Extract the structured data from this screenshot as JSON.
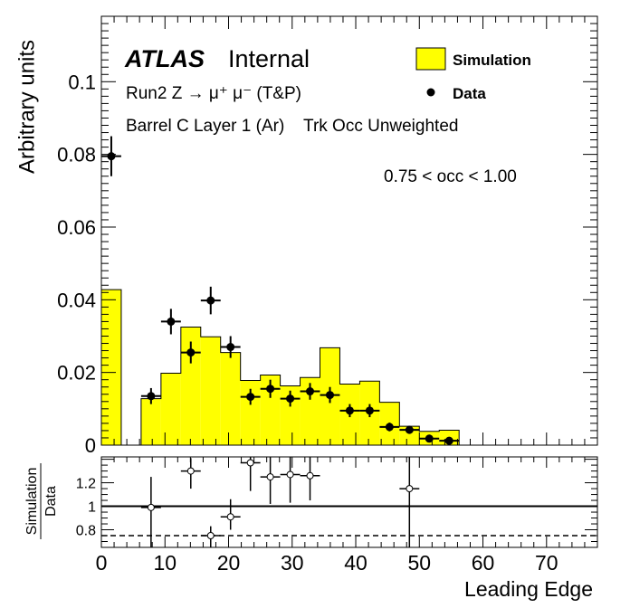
{
  "chart_data": [
    {
      "type": "bar",
      "panel": "main",
      "ylabel": "Arbitrary units",
      "xlim": [
        0,
        78
      ],
      "ylim": [
        0,
        0.118
      ],
      "yticks": [
        0,
        0.02,
        0.04,
        0.06,
        0.08,
        0.1
      ],
      "ytick_labels": [
        "0",
        "0.02",
        "0.04",
        "0.06",
        "0.08",
        "0.1"
      ],
      "atlas_label": "ATLAS",
      "atlas_status": "Internal",
      "annotations": [
        "Run2 Z → μ⁺ μ⁻ (T&P)",
        "Barrel C Layer 1 (Ar)    Trk Occ Unweighted",
        "0.75 < occ < 1.00"
      ],
      "legend": {
        "position": "top-right",
        "entries": [
          "Simulation",
          "Data"
        ]
      },
      "series": [
        {
          "name": "Simulation",
          "kind": "histogram",
          "color": "#ffff00",
          "bins": [
            {
              "x0": 0,
              "x1": 3.125,
              "y": 0.0428
            },
            {
              "x0": 3.125,
              "x1": 6.25,
              "y": 0
            },
            {
              "x0": 6.25,
              "x1": 9.375,
              "y": 0.0128
            },
            {
              "x0": 9.375,
              "x1": 12.5,
              "y": 0.0198
            },
            {
              "x0": 12.5,
              "x1": 15.625,
              "y": 0.0325
            },
            {
              "x0": 15.625,
              "x1": 18.75,
              "y": 0.0298
            },
            {
              "x0": 18.75,
              "x1": 21.875,
              "y": 0.0255
            },
            {
              "x0": 21.875,
              "x1": 25,
              "y": 0.0178
            },
            {
              "x0": 25,
              "x1": 28.125,
              "y": 0.0193
            },
            {
              "x0": 28.125,
              "x1": 31.25,
              "y": 0.0163
            },
            {
              "x0": 31.25,
              "x1": 34.375,
              "y": 0.0186
            },
            {
              "x0": 34.375,
              "x1": 37.5,
              "y": 0.0268
            },
            {
              "x0": 37.5,
              "x1": 40.625,
              "y": 0.0168
            },
            {
              "x0": 40.625,
              "x1": 43.75,
              "y": 0.0176
            },
            {
              "x0": 43.75,
              "x1": 46.875,
              "y": 0.0118
            },
            {
              "x0": 46.875,
              "x1": 50,
              "y": 0.0052
            },
            {
              "x0": 50,
              "x1": 53.125,
              "y": 0.0038
            },
            {
              "x0": 53.125,
              "x1": 56.25,
              "y": 0.0041
            }
          ]
        },
        {
          "name": "Data",
          "kind": "points",
          "points": [
            {
              "x": 1.56,
              "y": 0.0795,
              "yerr": 0.0055,
              "xerr": 1.56
            },
            {
              "x": 7.81,
              "y": 0.0135,
              "yerr": 0.0022,
              "xerr": 1.56
            },
            {
              "x": 10.94,
              "y": 0.034,
              "yerr": 0.0035,
              "xerr": 1.56
            },
            {
              "x": 14.06,
              "y": 0.0255,
              "yerr": 0.003,
              "xerr": 1.56
            },
            {
              "x": 17.19,
              "y": 0.0398,
              "yerr": 0.0038,
              "xerr": 1.56
            },
            {
              "x": 20.31,
              "y": 0.027,
              "yerr": 0.003,
              "xerr": 1.56
            },
            {
              "x": 23.44,
              "y": 0.0133,
              "yerr": 0.0022,
              "xerr": 1.56
            },
            {
              "x": 26.56,
              "y": 0.0155,
              "yerr": 0.0025,
              "xerr": 1.56
            },
            {
              "x": 29.69,
              "y": 0.0128,
              "yerr": 0.0022,
              "xerr": 1.56
            },
            {
              "x": 32.81,
              "y": 0.0148,
              "yerr": 0.0023,
              "xerr": 1.56
            },
            {
              "x": 35.94,
              "y": 0.0138,
              "yerr": 0.0022,
              "xerr": 1.56
            },
            {
              "x": 39.06,
              "y": 0.0095,
              "yerr": 0.0018,
              "xerr": 1.56
            },
            {
              "x": 42.19,
              "y": 0.0095,
              "yerr": 0.0018,
              "xerr": 1.56
            },
            {
              "x": 45.31,
              "y": 0.005,
              "yerr": 0.0012,
              "xerr": 1.56
            },
            {
              "x": 48.44,
              "y": 0.0042,
              "yerr": 0.0011,
              "xerr": 1.56
            },
            {
              "x": 51.56,
              "y": 0.0018,
              "yerr": 0.0007,
              "xerr": 1.56
            },
            {
              "x": 54.69,
              "y": 0.0012,
              "yerr": 0.0006,
              "xerr": 1.56
            }
          ]
        }
      ]
    },
    {
      "type": "scatter",
      "panel": "ratio",
      "ylabel": "Simulation / Data",
      "ylabel_numerator": "Simulation",
      "ylabel_denominator": "Data",
      "xlabel": "Leading Edge",
      "xlim": [
        0,
        78
      ],
      "ylim": [
        0.65,
        1.42
      ],
      "xticks": [
        0,
        10,
        20,
        30,
        40,
        50,
        60,
        70
      ],
      "xtick_labels": [
        "0",
        "10",
        "20",
        "30",
        "40",
        "50",
        "60",
        "70"
      ],
      "yticks": [
        0.8,
        1,
        1.2
      ],
      "ytick_labels": [
        "0.8",
        "1",
        "1.2"
      ],
      "reference_lines": [
        {
          "y": 1.0,
          "style": "solid"
        },
        {
          "y": 0.75,
          "style": "dashed"
        }
      ],
      "points": [
        {
          "x": 7.81,
          "y": 0.99,
          "yerr_low": 0.34,
          "yerr_high": 0.26,
          "xerr": 1.56
        },
        {
          "x": 14.06,
          "y": 1.3,
          "yerr_low": 0.15,
          "yerr_high": 0.11,
          "xerr": 1.56
        },
        {
          "x": 17.19,
          "y": 0.75,
          "yerr_low": 0.11,
          "yerr_high": 0.08,
          "xerr": 1.56
        },
        {
          "x": 20.31,
          "y": 0.91,
          "yerr_low": 0.11,
          "yerr_high": 0.15,
          "xerr": 1.56
        },
        {
          "x": 23.44,
          "y": 1.37,
          "yerr_low": 0.24,
          "yerr_high": 0.15,
          "xerr": 1.56
        },
        {
          "x": 26.56,
          "y": 1.25,
          "yerr_low": 0.23,
          "yerr_high": 0.18,
          "xerr": 1.56
        },
        {
          "x": 29.69,
          "y": 1.27,
          "yerr_low": 0.24,
          "yerr_high": 0.18,
          "xerr": 1.56
        },
        {
          "x": 32.81,
          "y": 1.26,
          "yerr_low": 0.21,
          "yerr_high": 0.16,
          "xerr": 1.56
        },
        {
          "x": 48.44,
          "y": 1.15,
          "yerr_low": 0.52,
          "yerr_high": 0.27,
          "xerr": 1.56
        }
      ]
    }
  ]
}
